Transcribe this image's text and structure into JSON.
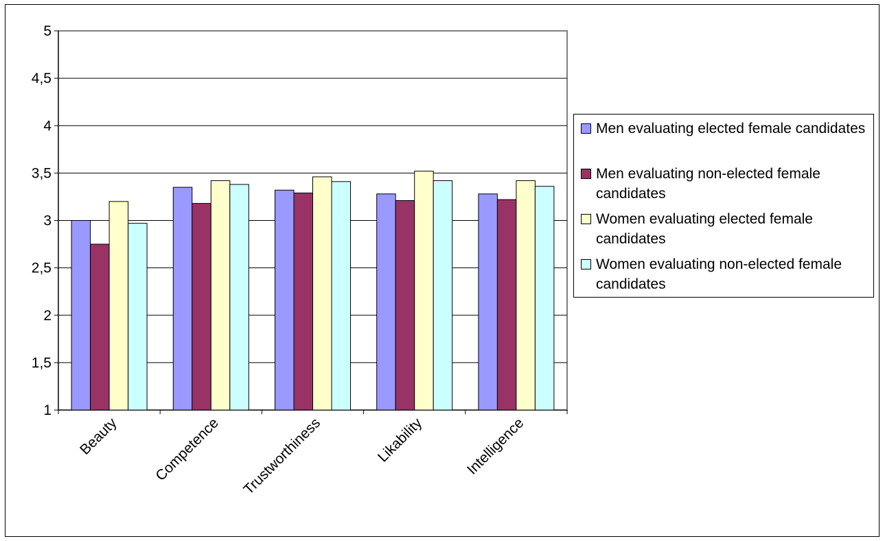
{
  "chart_data": {
    "type": "bar",
    "categories": [
      "Beauty",
      "Competence",
      "Trustworthiness",
      "Likability",
      "Intelligence"
    ],
    "series": [
      {
        "name": "Men evaluating elected female candidates",
        "color": "#9999ff",
        "values": [
          3.0,
          3.35,
          3.32,
          3.28,
          3.28
        ]
      },
      {
        "name": "Men evaluating non-elected female candidates",
        "color": "#993366",
        "values": [
          2.75,
          3.18,
          3.29,
          3.21,
          3.22
        ]
      },
      {
        "name": "Women evaluating elected female candidates",
        "color": "#ffffcc",
        "values": [
          3.2,
          3.42,
          3.46,
          3.52,
          3.42
        ]
      },
      {
        "name": "Women evaluating non-elected female candidates",
        "color": "#ccffff",
        "values": [
          2.97,
          3.38,
          3.41,
          3.42,
          3.36
        ]
      }
    ],
    "ylim": [
      1,
      5
    ],
    "yticks": [
      "1",
      "1,5",
      "2",
      "2,5",
      "3",
      "3,5",
      "4",
      "4,5",
      "5"
    ],
    "grid": true,
    "legend_position": "right"
  }
}
